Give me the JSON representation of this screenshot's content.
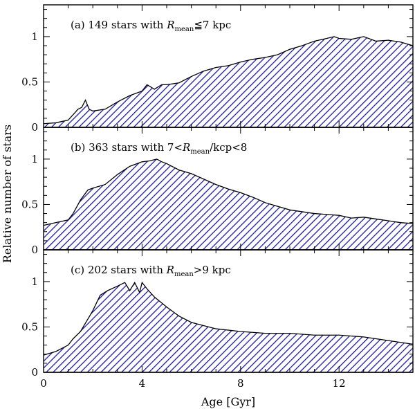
{
  "chart_data": {
    "type": "area",
    "shared_x_axis": {
      "label": "Age [Gyr]",
      "range": [
        0,
        15
      ],
      "ticks": [
        0,
        4,
        8,
        12
      ],
      "minor_step": 1
    },
    "shared_y_label": "Relative number of stars",
    "style": {
      "fill_pattern": "diagonal hatch",
      "fill_color": "#1a1aa6",
      "line_color": "#000000"
    },
    "panels": [
      {
        "tag": "(a)",
        "title_prefix": "(a) 149 stars with ",
        "title_var": "R",
        "title_sub": "mean",
        "title_suffix": "≦7 kpc",
        "ylim": [
          0,
          1.35
        ],
        "y_ticks": [
          0,
          0.5,
          1
        ],
        "y_tick_labels": [
          "0",
          "0.5",
          "1"
        ],
        "x": [
          0,
          0.5,
          1.0,
          1.2,
          1.4,
          1.55,
          1.7,
          1.85,
          2.0,
          2.5,
          3.0,
          3.5,
          4.0,
          4.2,
          4.5,
          4.8,
          5.0,
          5.5,
          6.0,
          6.5,
          7.0,
          7.5,
          8.0,
          8.5,
          9.0,
          9.5,
          10.0,
          10.5,
          11.0,
          11.5,
          11.8,
          12.0,
          12.5,
          13.0,
          13.5,
          14.0,
          14.5,
          15.0
        ],
        "y": [
          0.04,
          0.05,
          0.08,
          0.14,
          0.2,
          0.22,
          0.3,
          0.2,
          0.18,
          0.2,
          0.28,
          0.35,
          0.4,
          0.47,
          0.42,
          0.47,
          0.47,
          0.49,
          0.56,
          0.62,
          0.66,
          0.68,
          0.72,
          0.75,
          0.77,
          0.8,
          0.86,
          0.9,
          0.95,
          0.98,
          1.0,
          0.98,
          0.97,
          1.0,
          0.95,
          0.96,
          0.94,
          0.9
        ]
      },
      {
        "tag": "(b)",
        "title_prefix": "(b) 363 stars with 7<",
        "title_var": "R",
        "title_sub": "mean",
        "title_suffix": "/kcp<8",
        "ylim": [
          0,
          1.35
        ],
        "y_ticks": [
          0,
          0.5,
          1
        ],
        "y_tick_labels": [
          "0",
          "0.5",
          "1"
        ],
        "x": [
          0,
          0.5,
          1.0,
          1.2,
          1.5,
          1.8,
          2.0,
          2.5,
          3.0,
          3.5,
          4.0,
          4.3,
          4.6,
          4.8,
          5.0,
          5.5,
          6.0,
          6.5,
          7.0,
          7.5,
          8.0,
          8.5,
          9.0,
          9.5,
          10.0,
          10.5,
          11.0,
          11.5,
          12.0,
          12.5,
          13.0,
          13.5,
          14.0,
          14.5,
          15.0
        ],
        "y": [
          0.27,
          0.3,
          0.33,
          0.4,
          0.55,
          0.66,
          0.68,
          0.72,
          0.83,
          0.92,
          0.97,
          0.98,
          1.0,
          0.97,
          0.95,
          0.88,
          0.84,
          0.78,
          0.72,
          0.67,
          0.63,
          0.58,
          0.52,
          0.48,
          0.44,
          0.42,
          0.4,
          0.39,
          0.38,
          0.35,
          0.36,
          0.34,
          0.32,
          0.3,
          0.29
        ]
      },
      {
        "tag": "(c)",
        "title_prefix": "(c) 202 stars with ",
        "title_var": "R",
        "title_sub": "mean",
        "title_suffix": ">9 kpc",
        "ylim": [
          0,
          1.35
        ],
        "y_ticks": [
          0,
          0.5,
          1
        ],
        "y_tick_labels": [
          "0",
          "0.5",
          "1"
        ],
        "x": [
          0,
          0.5,
          1.0,
          1.2,
          1.5,
          2.0,
          2.3,
          2.6,
          3.0,
          3.3,
          3.5,
          3.7,
          3.9,
          4.0,
          4.2,
          4.5,
          5.0,
          5.5,
          6.0,
          7.0,
          8.0,
          9.0,
          10.0,
          11.0,
          12.0,
          13.0,
          14.0,
          15.0
        ],
        "y": [
          0.19,
          0.23,
          0.3,
          0.37,
          0.45,
          0.68,
          0.85,
          0.9,
          0.95,
          0.99,
          0.9,
          0.99,
          0.88,
          0.99,
          0.92,
          0.83,
          0.72,
          0.62,
          0.55,
          0.48,
          0.45,
          0.43,
          0.43,
          0.41,
          0.41,
          0.39,
          0.35,
          0.31
        ]
      }
    ]
  }
}
